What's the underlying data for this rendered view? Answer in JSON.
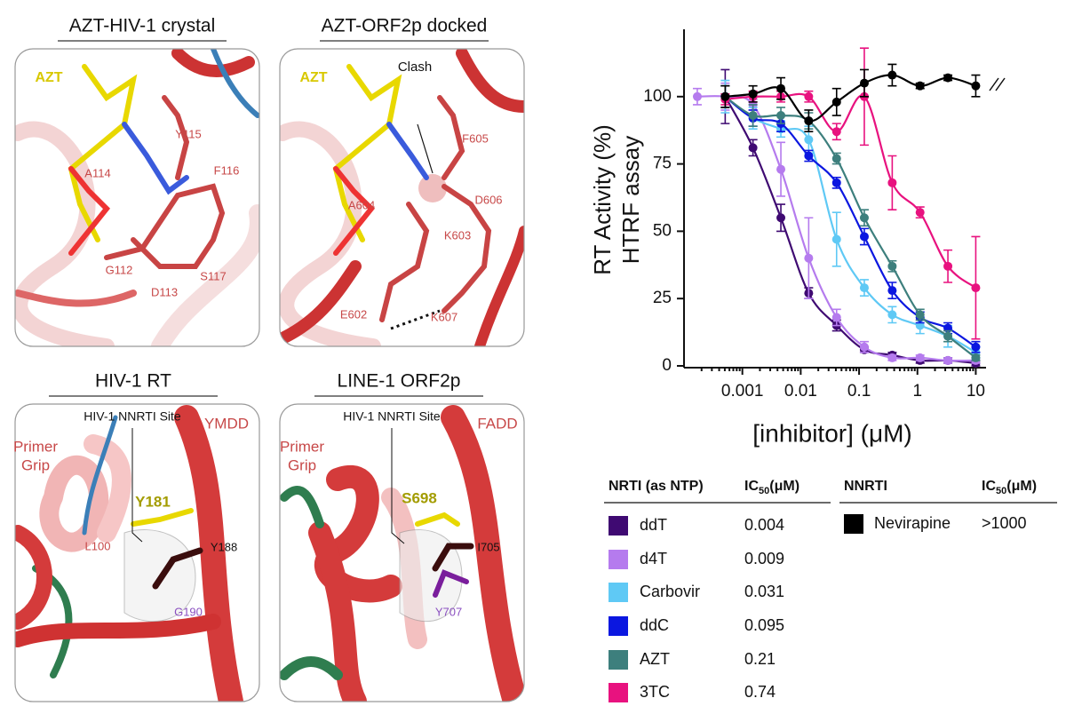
{
  "panels": [
    {
      "title": "AZT-HIV-1 crystal",
      "labels": [
        "AZT",
        "Y115",
        "A114",
        "F116",
        "G112",
        "D113",
        "S117"
      ]
    },
    {
      "title": "AZT-ORF2p docked",
      "labels": [
        "AZT",
        "Clash",
        "F605",
        "A604",
        "D606",
        "K603",
        "E602",
        "K607"
      ]
    },
    {
      "title": "HIV-1 RT",
      "labels": [
        "HIV-1 NNRTI Site",
        "Primer",
        "Grip",
        "YMDD",
        "Y181",
        "L100",
        "Y188",
        "G190"
      ]
    },
    {
      "title": "LINE-1 ORF2p",
      "labels": [
        "HIV-1 NNRTI Site",
        "Primer",
        "Grip",
        "FADD",
        "S698",
        "I705",
        "Y707"
      ]
    }
  ],
  "chart_data": {
    "type": "scatter",
    "xscale": "log",
    "grid": false,
    "y_label": [
      "RT Activity (%)",
      "HTRF assay"
    ],
    "x_label": "[inhibitor] (μM)",
    "xlim": [
      0.0001,
      15
    ],
    "ylim": [
      0,
      125
    ],
    "xticks": [
      0.001,
      0.01,
      0.1,
      1,
      10
    ],
    "yticks": [
      0,
      25,
      50,
      75,
      100
    ],
    "x": [
      0.000169,
      0.000508,
      0.00152,
      0.00457,
      0.0137,
      0.0412,
      0.123,
      0.37,
      1.11,
      3.33,
      10
    ],
    "series": [
      {
        "name": "ddT",
        "color": "#3f0a72",
        "values": [
          null,
          100,
          81,
          55,
          27,
          15,
          6,
          4,
          2,
          2,
          1
        ],
        "errors": [
          null,
          10,
          3,
          5,
          2,
          2,
          1,
          1,
          1,
          1,
          1
        ]
      },
      {
        "name": "d4T",
        "color": "#b57bee",
        "values": [
          100,
          100,
          97,
          73,
          40,
          18,
          7,
          3,
          3,
          2,
          2
        ],
        "errors": [
          3,
          5,
          2,
          10,
          15,
          3,
          2,
          1,
          1,
          1,
          1
        ]
      },
      {
        "name": "Carbovir",
        "color": "#5fc9f5",
        "values": [
          null,
          100,
          92,
          88,
          84,
          47,
          29,
          19,
          15,
          11,
          5
        ],
        "errors": [
          null,
          6,
          4,
          3,
          5,
          10,
          3,
          3,
          3,
          4,
          2
        ]
      },
      {
        "name": "ddC",
        "color": "#0b17e0",
        "values": [
          null,
          100,
          92,
          90,
          78,
          68,
          48,
          28,
          18,
          14,
          7
        ],
        "errors": [
          null,
          4,
          3,
          3,
          2,
          2,
          3,
          3,
          2,
          2,
          2
        ]
      },
      {
        "name": "AZT",
        "color": "#3d7f7d",
        "values": [
          null,
          100,
          93,
          93,
          91,
          77,
          55,
          37,
          19,
          11,
          3
        ],
        "errors": [
          null,
          4,
          4,
          3,
          3,
          2,
          3,
          2,
          2,
          2,
          1
        ]
      },
      {
        "name": "3TC",
        "color": "#e8127f",
        "values": [
          null,
          99,
          100,
          100,
          100,
          87,
          100,
          68,
          57,
          37,
          29
        ],
        "errors": [
          null,
          2,
          2,
          2,
          2,
          3,
          18,
          10,
          2,
          6,
          19
        ]
      },
      {
        "name": "Nevirapine",
        "color": "#000000",
        "values": [
          null,
          100,
          101,
          103,
          91,
          98,
          105,
          108,
          104,
          107,
          104
        ],
        "errors": [
          null,
          4,
          3,
          4,
          4,
          5,
          5,
          4,
          1,
          1,
          4
        ]
      }
    ]
  },
  "nrti_table": {
    "headers": [
      "NRTI (as NTP)",
      {
        "main": "IC",
        "sub": "50",
        "unit": "(μM)"
      }
    ],
    "ic50": [
      "0.004",
      "0.009",
      "0.031",
      "0.095",
      "0.21",
      "0.74"
    ]
  },
  "nnrti_table": {
    "headers": [
      "NNRTI",
      {
        "main": "IC",
        "sub": "50",
        "unit": "(μM)"
      }
    ],
    "ic50": [
      ">1000"
    ]
  }
}
